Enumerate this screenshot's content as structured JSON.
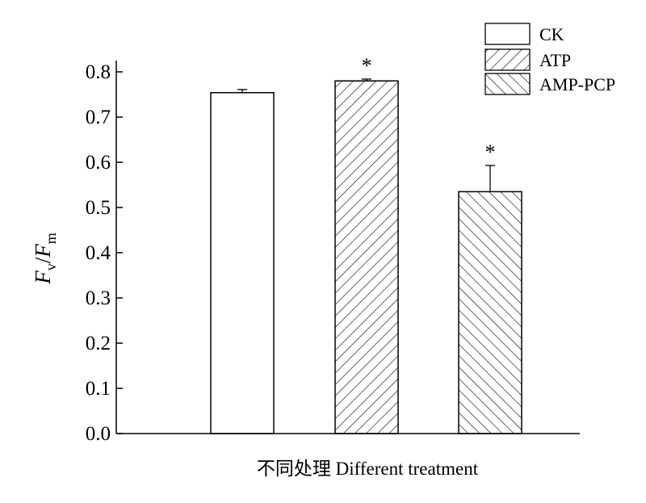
{
  "chart_data": {
    "type": "bar",
    "title": "",
    "xlabel": "不同处理 Different treatment",
    "ylabel": {
      "main": "F",
      "sub1": "v",
      "slash": "/",
      "main2": "F",
      "sub2": "m"
    },
    "ylim": [
      0,
      0.8
    ],
    "yticks": [
      "0.0",
      "0.1",
      "0.2",
      "0.3",
      "0.4",
      "0.5",
      "0.6",
      "0.7",
      "0.8"
    ],
    "grid": false,
    "legend_position": "top-right",
    "series": [
      {
        "name": "CK",
        "value": 0.754,
        "error": 0.007,
        "pattern": "none",
        "annotation": ""
      },
      {
        "name": "ATP",
        "value": 0.78,
        "error": 0.004,
        "pattern": "forward",
        "annotation": "*"
      },
      {
        "name": "AMP-PCP",
        "value": 0.535,
        "error": 0.058,
        "pattern": "backward",
        "annotation": "*"
      }
    ]
  },
  "colors": {
    "axis": "#000000",
    "bar_fill": "#ffffff",
    "hatch": "#000000"
  }
}
